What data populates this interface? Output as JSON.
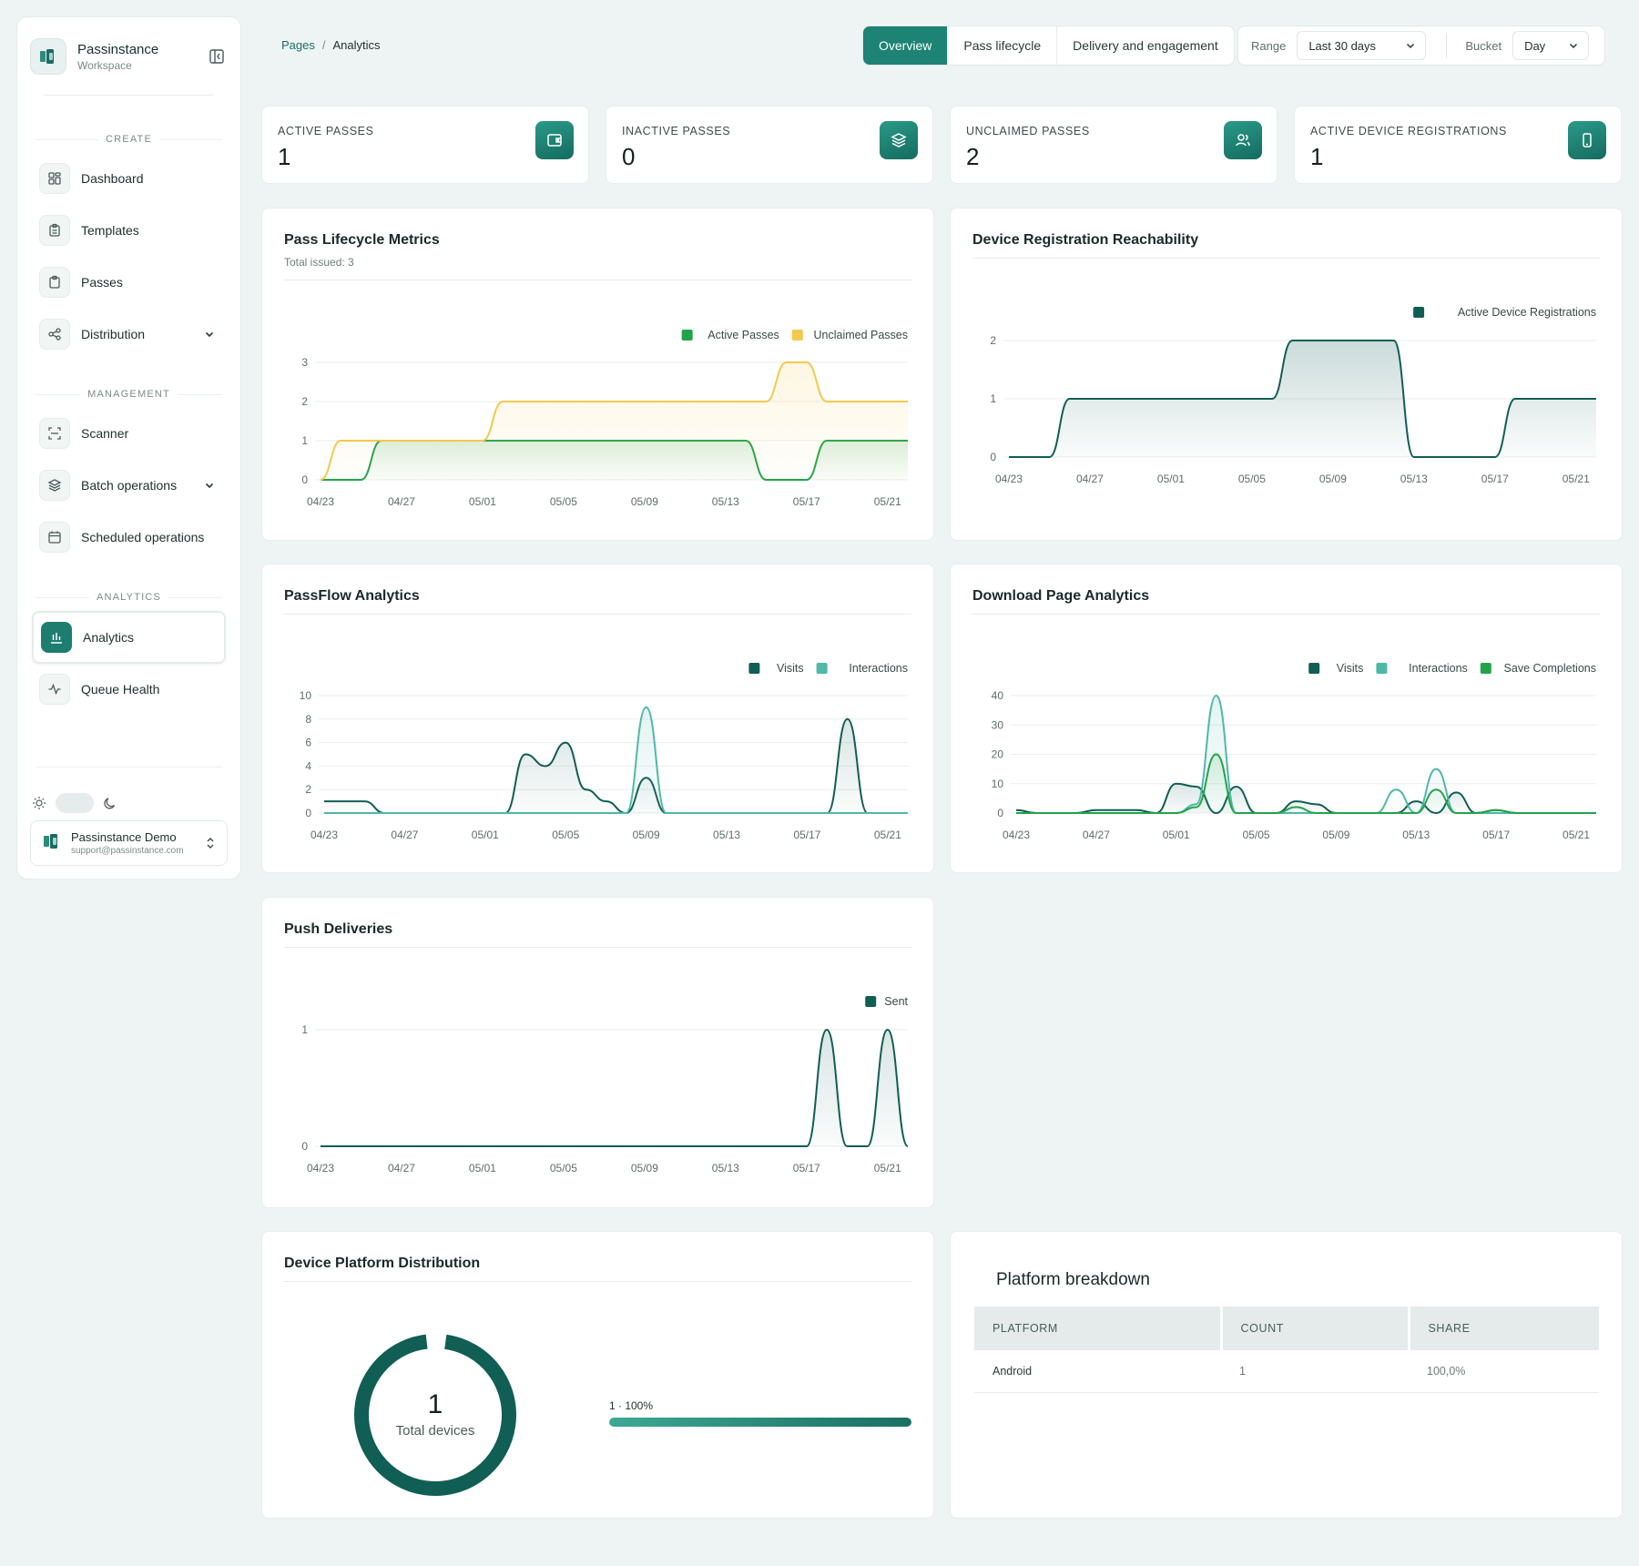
{
  "brand": {
    "name": "Passinstance",
    "subtitle": "Workspace"
  },
  "sidebar": {
    "sections": [
      "CREATE",
      "MANAGEMENT",
      "ANALYTICS"
    ],
    "items": [
      {
        "label": "Dashboard",
        "icon": "grid-icon"
      },
      {
        "label": "Templates",
        "icon": "clipboard-icon"
      },
      {
        "label": "Passes",
        "icon": "clipboard-icon"
      },
      {
        "label": "Distribution",
        "icon": "share-icon",
        "expandable": true
      },
      {
        "label": "Scanner",
        "icon": "scan-icon"
      },
      {
        "label": "Batch operations",
        "icon": "layers-icon",
        "expandable": true
      },
      {
        "label": "Scheduled operations",
        "icon": "calendar-icon"
      },
      {
        "label": "Analytics",
        "icon": "bar-chart-icon",
        "active": true
      },
      {
        "label": "Queue Health",
        "icon": "pulse-icon"
      }
    ]
  },
  "user": {
    "name": "Passinstance Demo",
    "email": "support@passinstance.com"
  },
  "breadcrumb": {
    "root": "Pages",
    "separator": "/",
    "current": "Analytics"
  },
  "tabs": [
    {
      "label": "Overview",
      "active": true
    },
    {
      "label": "Pass lifecycle",
      "active": false
    },
    {
      "label": "Delivery and engagement",
      "active": false
    }
  ],
  "filters": {
    "range_label": "Range",
    "range_value": "Last 30 days",
    "bucket_label": "Bucket",
    "bucket_value": "Day"
  },
  "kpis": [
    {
      "label": "ACTIVE PASSES",
      "value": "1",
      "icon": "wallet-icon"
    },
    {
      "label": "INACTIVE PASSES",
      "value": "0",
      "icon": "layers-icon"
    },
    {
      "label": "UNCLAIMED PASSES",
      "value": "2",
      "icon": "users-icon"
    },
    {
      "label": "ACTIVE DEVICE REGISTRATIONS",
      "value": "1",
      "icon": "device-icon"
    }
  ],
  "colors": {
    "accent": "#1d8374",
    "active_passes": "#22a34a",
    "unclaimed_passes": "#f2c94c",
    "visits": "#115e54",
    "interactions": "#4fb8a7",
    "save_completions": "#22a34a",
    "device_reg": "#115e54",
    "sent": "#115e54"
  },
  "chart_data": [
    {
      "id": "lifecycle",
      "type": "line",
      "title": "Pass Lifecycle Metrics",
      "subtitle": "Total issued: 3",
      "x": [
        "04/23",
        "04/24",
        "04/25",
        "04/26",
        "04/27",
        "04/28",
        "04/29",
        "04/30",
        "05/01",
        "05/02",
        "05/03",
        "05/04",
        "05/05",
        "05/06",
        "05/07",
        "05/08",
        "05/09",
        "05/10",
        "05/11",
        "05/12",
        "05/13",
        "05/14",
        "05/15",
        "05/16",
        "05/17",
        "05/18",
        "05/19",
        "05/20",
        "05/21",
        "05/22"
      ],
      "xticks": [
        "04/23",
        "04/27",
        "05/01",
        "05/05",
        "05/09",
        "05/13",
        "05/17",
        "05/21"
      ],
      "ylim": [
        0,
        3
      ],
      "yticks": [
        0,
        1,
        2,
        3
      ],
      "series": [
        {
          "name": "Active Passes",
          "values": [
            0,
            0,
            0,
            1,
            1,
            1,
            1,
            1,
            1,
            1,
            1,
            1,
            1,
            1,
            1,
            1,
            1,
            1,
            1,
            1,
            1,
            1,
            0,
            0,
            0,
            1,
            1,
            1,
            1,
            1
          ]
        },
        {
          "name": "Unclaimed Passes",
          "values": [
            0,
            1,
            1,
            1,
            1,
            1,
            1,
            1,
            1,
            2,
            2,
            2,
            2,
            2,
            2,
            2,
            2,
            2,
            2,
            2,
            2,
            2,
            2,
            3,
            3,
            2,
            2,
            2,
            2,
            2
          ]
        }
      ]
    },
    {
      "id": "reachability",
      "type": "area",
      "title": "Device Registration Reachability",
      "x": [
        "04/23",
        "04/24",
        "04/25",
        "04/26",
        "04/27",
        "04/28",
        "04/29",
        "04/30",
        "05/01",
        "05/02",
        "05/03",
        "05/04",
        "05/05",
        "05/06",
        "05/07",
        "05/08",
        "05/09",
        "05/10",
        "05/11",
        "05/12",
        "05/13",
        "05/14",
        "05/15",
        "05/16",
        "05/17",
        "05/18",
        "05/19",
        "05/20",
        "05/21",
        "05/22"
      ],
      "xticks": [
        "04/23",
        "04/27",
        "05/01",
        "05/05",
        "05/09",
        "05/13",
        "05/17",
        "05/21"
      ],
      "ylim": [
        0,
        2
      ],
      "yticks": [
        0,
        1,
        2
      ],
      "series": [
        {
          "name": "Active Device Registrations",
          "values": [
            0,
            0,
            0,
            1,
            1,
            1,
            1,
            1,
            1,
            1,
            1,
            1,
            1,
            1,
            2,
            2,
            2,
            2,
            2,
            2,
            0,
            0,
            0,
            0,
            0,
            1,
            1,
            1,
            1,
            1
          ]
        }
      ]
    },
    {
      "id": "passflow",
      "type": "line",
      "title": "PassFlow Analytics",
      "x": [
        "04/23",
        "04/24",
        "04/25",
        "04/26",
        "04/27",
        "04/28",
        "04/29",
        "04/30",
        "05/01",
        "05/02",
        "05/03",
        "05/04",
        "05/05",
        "05/06",
        "05/07",
        "05/08",
        "05/09",
        "05/10",
        "05/11",
        "05/12",
        "05/13",
        "05/14",
        "05/15",
        "05/16",
        "05/17",
        "05/18",
        "05/19",
        "05/20",
        "05/21",
        "05/22"
      ],
      "xticks": [
        "04/23",
        "04/27",
        "05/01",
        "05/05",
        "05/09",
        "05/13",
        "05/17",
        "05/21"
      ],
      "ylim": [
        0,
        10
      ],
      "yticks": [
        0,
        2,
        4,
        6,
        8,
        10
      ],
      "series": [
        {
          "name": "Visits",
          "values": [
            1,
            1,
            1,
            0,
            0,
            0,
            0,
            0,
            0,
            0,
            5,
            4,
            6,
            2,
            1,
            0,
            3,
            0,
            0,
            0,
            0,
            0,
            0,
            0,
            0,
            0,
            8,
            0,
            0,
            0
          ]
        },
        {
          "name": "Interactions",
          "values": [
            0,
            0,
            0,
            0,
            0,
            0,
            0,
            0,
            0,
            0,
            0,
            0,
            0,
            0,
            0,
            0,
            9,
            0,
            0,
            0,
            0,
            0,
            0,
            0,
            0,
            0,
            0,
            0,
            0,
            0
          ]
        }
      ]
    },
    {
      "id": "download",
      "type": "line",
      "title": "Download Page Analytics",
      "x": [
        "04/23",
        "04/24",
        "04/25",
        "04/26",
        "04/27",
        "04/28",
        "04/29",
        "04/30",
        "05/01",
        "05/02",
        "05/03",
        "05/04",
        "05/05",
        "05/06",
        "05/07",
        "05/08",
        "05/09",
        "05/10",
        "05/11",
        "05/12",
        "05/13",
        "05/14",
        "05/15",
        "05/16",
        "05/17",
        "05/18",
        "05/19",
        "05/20",
        "05/21",
        "05/22"
      ],
      "xticks": [
        "04/23",
        "04/27",
        "05/01",
        "05/05",
        "05/09",
        "05/13",
        "05/17",
        "05/21"
      ],
      "ylim": [
        0,
        40
      ],
      "yticks": [
        0,
        10,
        20,
        30,
        40
      ],
      "series": [
        {
          "name": "Visits",
          "values": [
            1,
            0,
            0,
            0,
            1,
            1,
            1,
            0,
            10,
            9,
            0,
            9,
            0,
            0,
            4,
            3,
            0,
            0,
            0,
            0,
            4,
            0,
            7,
            0,
            1,
            0,
            0,
            0,
            0,
            0
          ]
        },
        {
          "name": "Interactions",
          "values": [
            0,
            0,
            0,
            0,
            0,
            0,
            0,
            0,
            0,
            3,
            40,
            0,
            0,
            0,
            0,
            0,
            0,
            0,
            0,
            8,
            0,
            15,
            0,
            0,
            0,
            0,
            0,
            0,
            0,
            0
          ]
        },
        {
          "name": "Save Completions",
          "values": [
            0,
            0,
            0,
            0,
            0,
            0,
            0,
            0,
            0,
            2,
            20,
            0,
            0,
            0,
            2,
            0,
            0,
            0,
            0,
            0,
            0,
            8,
            0,
            0,
            1,
            0,
            0,
            0,
            0,
            0
          ]
        }
      ]
    },
    {
      "id": "push",
      "type": "line",
      "title": "Push Deliveries",
      "x": [
        "04/23",
        "04/24",
        "04/25",
        "04/26",
        "04/27",
        "04/28",
        "04/29",
        "04/30",
        "05/01",
        "05/02",
        "05/03",
        "05/04",
        "05/05",
        "05/06",
        "05/07",
        "05/08",
        "05/09",
        "05/10",
        "05/11",
        "05/12",
        "05/13",
        "05/14",
        "05/15",
        "05/16",
        "05/17",
        "05/18",
        "05/19",
        "05/20",
        "05/21",
        "05/22"
      ],
      "xticks": [
        "04/23",
        "04/27",
        "05/01",
        "05/05",
        "05/09",
        "05/13",
        "05/17",
        "05/21"
      ],
      "ylim": [
        0,
        1
      ],
      "yticks": [
        0,
        1
      ],
      "series": [
        {
          "name": "Sent",
          "values": [
            0,
            0,
            0,
            0,
            0,
            0,
            0,
            0,
            0,
            0,
            0,
            0,
            0,
            0,
            0,
            0,
            0,
            0,
            0,
            0,
            0,
            0,
            0,
            0,
            0,
            1,
            0,
            0,
            1,
            0
          ]
        }
      ]
    },
    {
      "id": "platform",
      "type": "pie",
      "title": "Device Platform Distribution",
      "center_value": "1",
      "center_label": "Total devices",
      "bar_label": "1 · 100%",
      "slices": [
        {
          "name": "Android",
          "value": 1,
          "share": 100
        }
      ]
    }
  ],
  "platform_table": {
    "title": "Platform breakdown",
    "headers": [
      "PLATFORM",
      "COUNT",
      "SHARE"
    ],
    "rows": [
      [
        "Android",
        "1",
        "100,0%"
      ]
    ]
  }
}
